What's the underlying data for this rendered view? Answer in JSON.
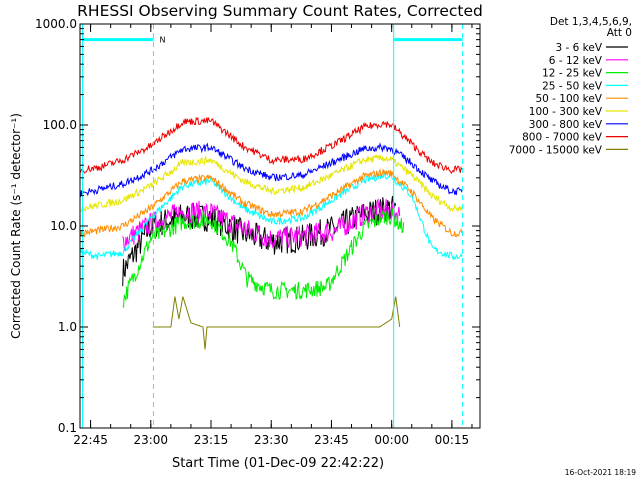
{
  "chart_data": {
    "type": "line",
    "title": "RHESSI Observing Summary Count Rates, Corrected",
    "xlabel": "Start Time (01-Dec-09 22:42:22)",
    "ylabel": "Corrected Count Rate (s⁻¹ detector⁻¹)",
    "yscale": "log",
    "ylim": [
      0.1,
      1000.0
    ],
    "xlim": [
      "22:42:22",
      "00:22:00"
    ],
    "y_ticks": [
      "1000.0",
      "100.0",
      "10.0",
      "1.0",
      "0.1"
    ],
    "x_ticks": [
      "22:45",
      "23:00",
      "23:15",
      "23:30",
      "23:45",
      "00:00",
      "00:15"
    ],
    "grid": false,
    "legend_position": "top-right",
    "legend_header": [
      "Det 1,3,4,5,6,9,",
      "Att 0"
    ],
    "flag_label": "N",
    "footer_date": "16-Oct-2021 18:19",
    "series": [
      {
        "name": "3 - 6 keV",
        "color": "#000000",
        "x": [
          "22:53:00",
          "23:00:00",
          "23:08:00",
          "23:15:00",
          "23:23:00",
          "23:30:00",
          "23:38:00",
          "23:46:00",
          "23:53:00",
          "23:58:00",
          "00:00:00",
          "00:01:00"
        ],
        "y": [
          3.5,
          10,
          12.5,
          12,
          8.5,
          7,
          7.5,
          9.5,
          13,
          14.5,
          15,
          14
        ]
      },
      {
        "name": "6 - 12 keV",
        "color": "#ff00ff",
        "x": [
          "22:53:00",
          "23:00:00",
          "23:08:00",
          "23:15:00",
          "23:23:00",
          "23:30:00",
          "23:38:00",
          "23:46:00",
          "23:53:00",
          "23:58:00",
          "00:00:00",
          "00:02:00"
        ],
        "y": [
          7,
          10.5,
          14,
          13.5,
          9.5,
          7.5,
          8,
          9,
          13,
          14.5,
          14,
          13
        ]
      },
      {
        "name": "12 - 25 keV",
        "color": "#00ee00",
        "x": [
          "22:53:00",
          "23:00:00",
          "23:08:00",
          "23:15:00",
          "23:20:00",
          "23:24:00",
          "23:30:00",
          "23:38:00",
          "23:44:00",
          "23:48:00",
          "23:53:00",
          "23:58:00",
          "00:00:00",
          "00:02:00",
          "00:03:00"
        ],
        "y": [
          1.8,
          7.5,
          11,
          11.5,
          7,
          3,
          2.3,
          2.3,
          2.5,
          4.5,
          9.5,
          12.5,
          12.5,
          10.5,
          9.5
        ]
      },
      {
        "name": "25 - 50 keV",
        "color": "#00ffff",
        "x": [
          "22:42:30",
          "22:47:00",
          "22:53:00",
          "23:00:00",
          "23:08:00",
          "23:15:00",
          "23:23:00",
          "23:30:00",
          "23:38:00",
          "23:46:00",
          "23:53:00",
          "23:58:00",
          "00:00:00",
          "00:05:00",
          "00:10:00",
          "00:15:00",
          "00:17:30"
        ],
        "y": [
          5.5,
          5,
          5.5,
          12,
          25,
          28,
          15,
          11,
          12,
          19,
          28,
          32,
          31,
          20,
          6,
          5,
          5
        ]
      },
      {
        "name": "50 - 100 keV",
        "color": "#ff8c00",
        "x": [
          "22:42:30",
          "22:47:00",
          "22:53:00",
          "23:00:00",
          "23:08:00",
          "23:15:00",
          "23:23:00",
          "23:30:00",
          "23:38:00",
          "23:46:00",
          "23:53:00",
          "23:58:00",
          "00:00:00",
          "00:05:00",
          "00:10:00",
          "00:15:00",
          "00:17:30"
        ],
        "y": [
          8.5,
          9,
          10,
          15,
          28,
          30,
          17,
          13,
          14,
          21,
          31,
          34,
          33,
          22,
          12,
          8.5,
          8.5
        ]
      },
      {
        "name": "100 - 300 keV",
        "color": "#e6e600",
        "x": [
          "22:42:30",
          "22:47:00",
          "22:53:00",
          "23:00:00",
          "23:08:00",
          "23:15:00",
          "23:23:00",
          "23:30:00",
          "23:38:00",
          "23:46:00",
          "23:53:00",
          "23:58:00",
          "00:00:00",
          "00:05:00",
          "00:10:00",
          "00:15:00",
          "00:17:30"
        ],
        "y": [
          15,
          16,
          18,
          25,
          42,
          45,
          28,
          22,
          24,
          33,
          45,
          47,
          45,
          32,
          20,
          15,
          15
        ]
      },
      {
        "name": "300 - 800 keV",
        "color": "#0000ff",
        "x": [
          "22:42:30",
          "22:47:00",
          "22:53:00",
          "23:00:00",
          "23:08:00",
          "23:15:00",
          "23:23:00",
          "23:30:00",
          "23:38:00",
          "23:46:00",
          "23:53:00",
          "23:58:00",
          "00:00:00",
          "00:05:00",
          "00:10:00",
          "00:15:00",
          "00:17:30"
        ],
        "y": [
          21,
          23,
          26,
          35,
          58,
          60,
          38,
          30,
          32,
          44,
          58,
          60,
          58,
          42,
          28,
          22,
          22
        ]
      },
      {
        "name": "800 - 7000 keV",
        "color": "#ee0000",
        "x": [
          "22:42:30",
          "22:47:00",
          "22:53:00",
          "23:00:00",
          "23:08:00",
          "23:15:00",
          "23:23:00",
          "23:30:00",
          "23:38:00",
          "23:46:00",
          "23:53:00",
          "23:58:00",
          "00:00:00",
          "00:05:00",
          "00:10:00",
          "00:15:00",
          "00:17:30"
        ],
        "y": [
          36,
          38,
          45,
          62,
          108,
          110,
          62,
          45,
          46,
          65,
          95,
          104,
          100,
          65,
          42,
          36,
          36
        ]
      },
      {
        "name": "7000 - 15000 keV",
        "color": "#808000",
        "x": [
          "23:00:30",
          "23:05:00",
          "23:06:00",
          "23:07:00",
          "23:08:00",
          "23:10:00",
          "23:13:00",
          "23:13:30",
          "23:14:00",
          "23:16:30",
          "23:53:00",
          "23:57:00",
          "00:00:00",
          "00:01:00",
          "00:02:00"
        ],
        "y": [
          1.0,
          1.0,
          2.0,
          1.2,
          2.0,
          1.1,
          1.0,
          0.6,
          1.0,
          1.0,
          1.0,
          1.0,
          1.2,
          2.0,
          1.0
        ]
      }
    ],
    "annotations": [
      {
        "type": "solid-vertical",
        "x": "22:43:00",
        "color": "#00ffff"
      },
      {
        "type": "dashed-vertical",
        "x": "23:00:40",
        "color": "#00ffff"
      },
      {
        "type": "solid-vertical",
        "x": "00:00:30",
        "color": "#00ffff"
      },
      {
        "type": "dashed-vertical",
        "x": "00:17:40",
        "color": "#00ffff"
      },
      {
        "type": "horizontal-bar",
        "x_start": "22:43:00",
        "x_end": "23:00:40",
        "y": 700,
        "color": "#00ffff"
      },
      {
        "type": "horizontal-bar",
        "x_start": "00:00:30",
        "x_end": "00:17:40",
        "y": 700,
        "color": "#00ffff"
      }
    ]
  }
}
